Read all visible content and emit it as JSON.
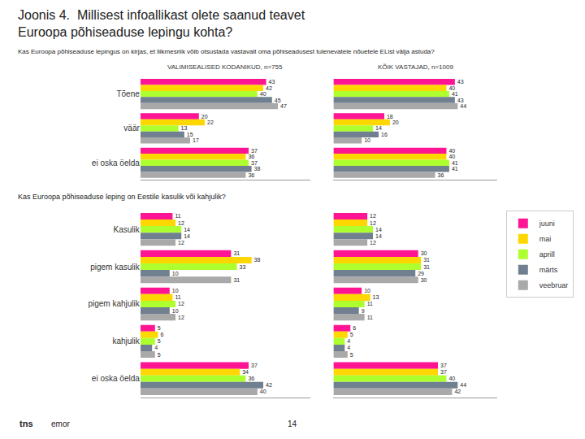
{
  "chart_data": [
    {
      "type": "bar",
      "orientation": "horizontal",
      "title": "Joonis 4.  Millisest infoallikast olete saanud teavet\nEuroopa põhiseaduse lepingu kohta?",
      "subtitle": "VALIMISEALISED KODANIKUD, n=755",
      "annotations": [
        "Kas Euroopa põhiseaduse lepingus on kirjas, et liikmesriik võib otsustada vastavalt oma põhiseadusest tulenevatele nõuetele EList välja astuda?"
      ],
      "categories": [
        "Tõene",
        "väär",
        "ei oska öelda"
      ],
      "series": [
        {
          "name": "juuni",
          "color": "#FF1493",
          "values": [
            43,
            20,
            37
          ]
        },
        {
          "name": "mai",
          "color": "#FFD700",
          "values": [
            42,
            22,
            36
          ]
        },
        {
          "name": "aprill",
          "color": "#ADFF2F",
          "values": [
            40,
            13,
            37
          ]
        },
        {
          "name": "märts",
          "color": "#708090",
          "values": [
            45,
            15,
            38
          ]
        },
        {
          "name": "veebruar",
          "color": "#A9A9A9",
          "values": [
            47,
            17,
            36
          ]
        }
      ],
      "xlim": [
        0,
        58
      ],
      "grid": false,
      "data_labels": true,
      "tick_labels": "y"
    },
    {
      "type": "bar",
      "orientation": "horizontal",
      "subtitle": "KÕIK VASTAJAD, n=1009",
      "categories": [
        "Tõene",
        "väär",
        "ei oska öelda"
      ],
      "series": [
        {
          "name": "juuni",
          "color": "#FF1493",
          "values": [
            43,
            18,
            40
          ]
        },
        {
          "name": "mai",
          "color": "#FFD700",
          "values": [
            40,
            20,
            40
          ]
        },
        {
          "name": "aprill",
          "color": "#ADFF2F",
          "values": [
            41,
            14,
            41
          ]
        },
        {
          "name": "märts",
          "color": "#708090",
          "values": [
            43,
            16,
            41
          ]
        },
        {
          "name": "veebruar",
          "color": "#A9A9A9",
          "values": [
            44,
            10,
            36
          ]
        }
      ],
      "xlim": [
        0,
        58
      ],
      "grid": false,
      "data_labels": true,
      "tick_labels": false
    },
    {
      "type": "bar",
      "orientation": "horizontal",
      "annotations": [
        "Kas Euroopa põhiseaduse leping on Eestile kasulik või kahjulik?"
      ],
      "categories": [
        "Kasulik",
        "pigem kasulik",
        "pigem kahjulik",
        "kahjulik",
        "ei oska öelda"
      ],
      "series": [
        {
          "name": "juuni",
          "color": "#FF1493",
          "values": [
            11,
            31,
            10,
            5,
            37
          ]
        },
        {
          "name": "mai",
          "color": "#FFD700",
          "values": [
            12,
            38,
            11,
            6,
            34
          ]
        },
        {
          "name": "aprill",
          "color": "#ADFF2F",
          "values": [
            14,
            33,
            12,
            5,
            36
          ]
        },
        {
          "name": "märts",
          "color": "#708090",
          "values": [
            14,
            10,
            10,
            4,
            42
          ]
        },
        {
          "name": "veebruar",
          "color": "#A9A9A9",
          "values": [
            12,
            31,
            12,
            5,
            40
          ]
        }
      ],
      "xlim": [
        0,
        58
      ],
      "grid": false,
      "data_labels": true,
      "tick_labels": "y"
    },
    {
      "type": "bar",
      "orientation": "horizontal",
      "annotations": [
        "tns",
        "emor",
        "14"
      ],
      "categories": [
        "Kasulik",
        "pigem kasulik",
        "pigem kahjulik",
        "kahjulik",
        "ei oska öelda"
      ],
      "series": [
        {
          "name": "juuni",
          "color": "#FF1493",
          "values": [
            12,
            30,
            10,
            6,
            37
          ]
        },
        {
          "name": "mai",
          "color": "#FFD700",
          "values": [
            12,
            31,
            13,
            5,
            37
          ]
        },
        {
          "name": "aprill",
          "color": "#ADFF2F",
          "values": [
            14,
            31,
            11,
            4,
            40
          ]
        },
        {
          "name": "märts",
          "color": "#708090",
          "values": [
            14,
            29,
            9,
            4,
            44
          ]
        },
        {
          "name": "veebruar",
          "color": "#A9A9A9",
          "values": [
            12,
            30,
            11,
            5,
            42
          ]
        }
      ],
      "xlim": [
        0,
        58
      ],
      "grid": false,
      "data_labels": true,
      "tick_labels": false,
      "legend": "right"
    }
  ]
}
